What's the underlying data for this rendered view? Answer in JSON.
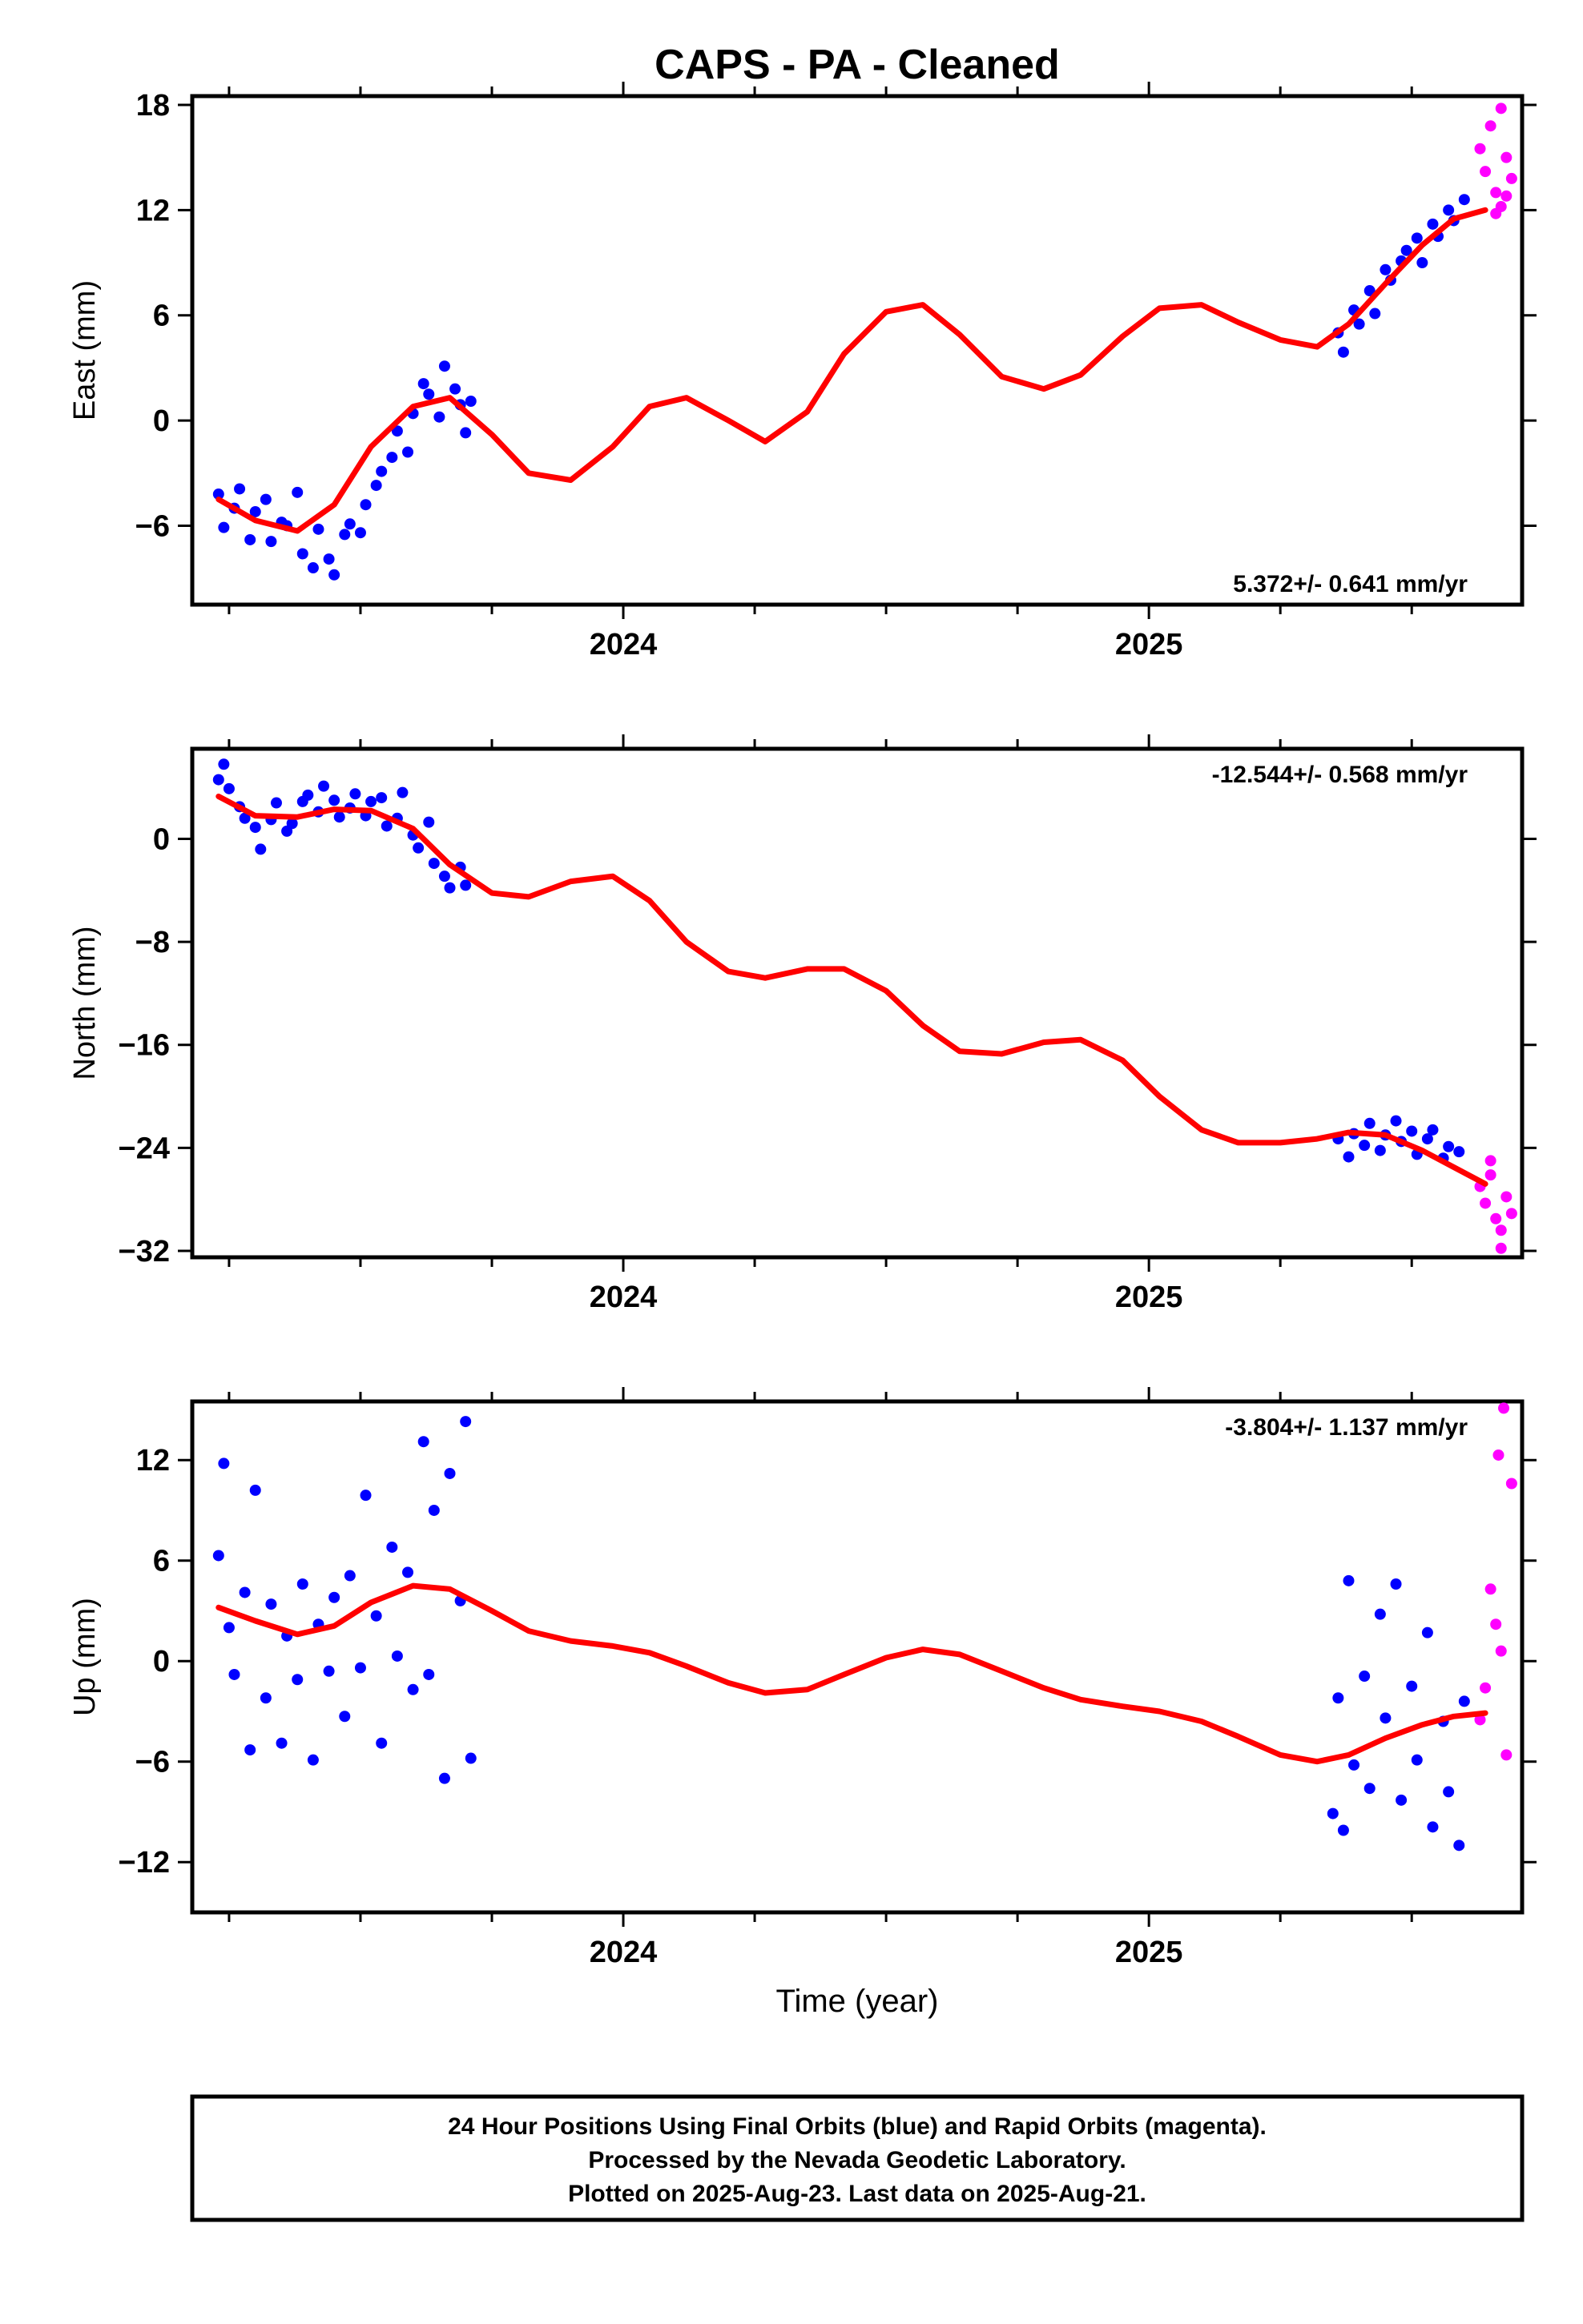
{
  "title": "CAPS  - PA - Cleaned",
  "x_axis_label": "Time (year)",
  "footer": {
    "line1": "24 Hour Positions Using Final Orbits (blue) and Rapid Orbits (magenta).",
    "line2": "Processed by the Nevada Geodetic Laboratory.",
    "line3": "Plotted on 2025-Aug-23. Last data on 2025-Aug-21."
  },
  "colors": {
    "final": "#0000ff",
    "rapid": "#ff00ff",
    "model": "#ff0000",
    "frame": "#000000"
  },
  "chart_data": [
    {
      "type": "scatter",
      "ylabel": "East (mm)",
      "rate_label": "5.372+/- 0.641 mm/yr",
      "rate_position": "bottom-right",
      "xlim": [
        2023.18,
        2025.71
      ],
      "ylim": [
        -10.5,
        18.5
      ],
      "yticks": [
        -6,
        0,
        6,
        12,
        18
      ],
      "xticks": [
        2024,
        2025
      ],
      "x_minor_step": 0.25,
      "model": {
        "x": [
          2023.23,
          2023.3,
          2023.38,
          2023.45,
          2023.52,
          2023.6,
          2023.67,
          2023.75,
          2023.82,
          2023.9,
          2023.98,
          2024.05,
          2024.12,
          2024.2,
          2024.27,
          2024.35,
          2024.42,
          2024.5,
          2024.57,
          2024.64,
          2024.72,
          2024.8,
          2024.87,
          2024.95,
          2025.02,
          2025.1,
          2025.17,
          2025.25,
          2025.32,
          2025.38,
          2025.45,
          2025.52,
          2025.58,
          2025.64
        ],
        "y": [
          -4.5,
          -5.7,
          -6.3,
          -4.8,
          -1.5,
          0.8,
          1.3,
          -0.8,
          -3.0,
          -3.4,
          -1.5,
          0.8,
          1.3,
          0.0,
          -1.2,
          0.5,
          3.8,
          6.2,
          6.6,
          4.9,
          2.5,
          1.8,
          2.6,
          4.8,
          6.4,
          6.6,
          5.6,
          4.6,
          4.2,
          5.5,
          7.8,
          10.0,
          11.5,
          12.0
        ]
      },
      "series": [
        {
          "name": "Final Orbits (blue)",
          "color": "#0000ff",
          "x": [
            2023.23,
            2023.24,
            2023.26,
            2023.27,
            2023.29,
            2023.3,
            2023.32,
            2023.33,
            2023.35,
            2023.36,
            2023.38,
            2023.39,
            2023.41,
            2023.42,
            2023.44,
            2023.45,
            2023.47,
            2023.48,
            2023.5,
            2023.51,
            2023.53,
            2023.54,
            2023.56,
            2023.57,
            2023.59,
            2023.6,
            2023.62,
            2023.63,
            2023.65,
            2023.66,
            2023.68,
            2023.69,
            2023.7,
            2023.71,
            2025.36,
            2025.37,
            2025.39,
            2025.4,
            2025.42,
            2025.43,
            2025.45,
            2025.46,
            2025.48,
            2025.49,
            2025.51,
            2025.52,
            2025.54,
            2025.55,
            2025.57,
            2025.58,
            2025.6
          ],
          "y": [
            -4.2,
            -6.1,
            -5.0,
            -3.9,
            -6.8,
            -5.2,
            -4.5,
            -6.9,
            -5.8,
            -6.0,
            -4.1,
            -7.6,
            -8.4,
            -6.2,
            -7.9,
            -8.8,
            -6.5,
            -5.9,
            -6.4,
            -4.8,
            -3.7,
            -2.9,
            -2.1,
            -0.6,
            -1.8,
            0.4,
            2.1,
            1.5,
            0.2,
            3.1,
            1.8,
            0.9,
            -0.7,
            1.1,
            5.0,
            3.9,
            6.3,
            5.5,
            7.4,
            6.1,
            8.6,
            8.0,
            9.1,
            9.7,
            10.4,
            9.0,
            11.2,
            10.5,
            12.0,
            11.4,
            12.6
          ]
        },
        {
          "name": "Rapid Orbits (magenta)",
          "color": "#ff00ff",
          "x": [
            2025.63,
            2025.64,
            2025.65,
            2025.66,
            2025.67,
            2025.68,
            2025.69,
            2025.66,
            2025.67,
            2025.68
          ],
          "y": [
            15.5,
            14.2,
            16.8,
            13.0,
            12.2,
            15.0,
            13.8,
            11.8,
            17.8,
            12.8
          ]
        }
      ]
    },
    {
      "type": "scatter",
      "ylabel": "North (mm)",
      "rate_label": "-12.544+/- 0.568 mm/yr",
      "rate_position": "top-right",
      "xlim": [
        2023.18,
        2025.71
      ],
      "ylim": [
        -32.5,
        7.0
      ],
      "yticks": [
        -32,
        -24,
        -16,
        -8,
        0
      ],
      "xticks": [
        2024,
        2025
      ],
      "x_minor_step": 0.25,
      "model": {
        "x": [
          2023.23,
          2023.3,
          2023.38,
          2023.45,
          2023.52,
          2023.6,
          2023.67,
          2023.75,
          2023.82,
          2023.9,
          2023.98,
          2024.05,
          2024.12,
          2024.2,
          2024.27,
          2024.35,
          2024.42,
          2024.5,
          2024.57,
          2024.64,
          2024.72,
          2024.8,
          2024.87,
          2024.95,
          2025.02,
          2025.1,
          2025.17,
          2025.25,
          2025.32,
          2025.38,
          2025.45,
          2025.52,
          2025.58,
          2025.64
        ],
        "y": [
          3.3,
          1.8,
          1.7,
          2.3,
          2.2,
          0.8,
          -2.0,
          -4.2,
          -4.5,
          -3.3,
          -2.9,
          -4.8,
          -8.0,
          -10.3,
          -10.8,
          -10.1,
          -10.1,
          -11.8,
          -14.5,
          -16.5,
          -16.7,
          -15.8,
          -15.6,
          -17.2,
          -20.0,
          -22.6,
          -23.6,
          -23.6,
          -23.3,
          -22.8,
          -23.0,
          -24.2,
          -25.5,
          -26.8
        ]
      },
      "series": [
        {
          "name": "Final Orbits (blue)",
          "color": "#0000ff",
          "x": [
            2023.23,
            2023.24,
            2023.25,
            2023.27,
            2023.28,
            2023.3,
            2023.31,
            2023.33,
            2023.34,
            2023.36,
            2023.37,
            2023.39,
            2023.4,
            2023.42,
            2023.43,
            2023.45,
            2023.46,
            2023.48,
            2023.49,
            2023.51,
            2023.52,
            2023.54,
            2023.55,
            2023.57,
            2023.58,
            2023.6,
            2023.61,
            2023.63,
            2023.64,
            2023.66,
            2023.67,
            2023.69,
            2023.7,
            2025.36,
            2025.38,
            2025.39,
            2025.41,
            2025.42,
            2025.44,
            2025.45,
            2025.47,
            2025.48,
            2025.5,
            2025.51,
            2025.53,
            2025.54,
            2025.56,
            2025.57,
            2025.59
          ],
          "y": [
            4.6,
            5.8,
            3.9,
            2.5,
            1.6,
            0.9,
            -0.8,
            1.5,
            2.8,
            0.6,
            1.2,
            2.9,
            3.4,
            2.1,
            4.1,
            3.0,
            1.7,
            2.4,
            3.5,
            1.8,
            2.9,
            3.2,
            1.0,
            1.6,
            3.6,
            0.3,
            -0.7,
            1.3,
            -1.9,
            -2.9,
            -3.8,
            -2.2,
            -3.6,
            -23.3,
            -24.7,
            -22.9,
            -23.8,
            -22.1,
            -24.2,
            -23.0,
            -21.9,
            -23.5,
            -22.7,
            -24.5,
            -23.3,
            -22.6,
            -24.8,
            -23.9,
            -24.3
          ]
        },
        {
          "name": "Rapid Orbits (magenta)",
          "color": "#ff00ff",
          "x": [
            2025.63,
            2025.64,
            2025.65,
            2025.66,
            2025.67,
            2025.68,
            2025.69,
            2025.65,
            2025.67
          ],
          "y": [
            -27.0,
            -28.3,
            -26.1,
            -29.5,
            -30.4,
            -27.8,
            -29.1,
            -25.0,
            -31.8
          ]
        }
      ]
    },
    {
      "type": "scatter",
      "ylabel": "Up (mm)",
      "rate_label": "-3.804+/- 1.137 mm/yr",
      "rate_position": "top-right",
      "xlim": [
        2023.18,
        2025.71
      ],
      "ylim": [
        -15.0,
        15.5
      ],
      "yticks": [
        -12,
        -6,
        0,
        6,
        12
      ],
      "xticks": [
        2024,
        2025
      ],
      "x_minor_step": 0.25,
      "model": {
        "x": [
          2023.23,
          2023.3,
          2023.38,
          2023.45,
          2023.52,
          2023.6,
          2023.67,
          2023.75,
          2023.82,
          2023.9,
          2023.98,
          2024.05,
          2024.12,
          2024.2,
          2024.27,
          2024.35,
          2024.42,
          2024.5,
          2024.57,
          2024.64,
          2024.72,
          2024.8,
          2024.87,
          2024.95,
          2025.02,
          2025.1,
          2025.17,
          2025.25,
          2025.32,
          2025.38,
          2025.45,
          2025.52,
          2025.58,
          2025.64
        ],
        "y": [
          3.2,
          2.4,
          1.6,
          2.1,
          3.5,
          4.5,
          4.3,
          3.0,
          1.8,
          1.2,
          0.9,
          0.5,
          -0.3,
          -1.3,
          -1.9,
          -1.7,
          -0.8,
          0.2,
          0.7,
          0.4,
          -0.6,
          -1.6,
          -2.3,
          -2.7,
          -3.0,
          -3.6,
          -4.5,
          -5.6,
          -6.0,
          -5.6,
          -4.6,
          -3.8,
          -3.3,
          -3.1
        ]
      },
      "series": [
        {
          "name": "Final Orbits (blue)",
          "color": "#0000ff",
          "x": [
            2023.23,
            2023.24,
            2023.25,
            2023.26,
            2023.28,
            2023.29,
            2023.3,
            2023.32,
            2023.33,
            2023.35,
            2023.36,
            2023.38,
            2023.39,
            2023.41,
            2023.42,
            2023.44,
            2023.45,
            2023.47,
            2023.48,
            2023.5,
            2023.51,
            2023.53,
            2023.54,
            2023.56,
            2023.57,
            2023.59,
            2023.6,
            2023.62,
            2023.63,
            2023.64,
            2023.66,
            2023.67,
            2023.69,
            2023.7,
            2023.71,
            2025.35,
            2025.36,
            2025.37,
            2025.38,
            2025.39,
            2025.41,
            2025.42,
            2025.44,
            2025.45,
            2025.47,
            2025.48,
            2025.5,
            2025.51,
            2025.53,
            2025.54,
            2025.56,
            2025.57,
            2025.59,
            2025.6
          ],
          "y": [
            6.3,
            11.8,
            2.0,
            -0.8,
            4.1,
            -5.3,
            10.2,
            -2.2,
            3.4,
            -4.9,
            1.5,
            -1.1,
            4.6,
            -5.9,
            2.2,
            -0.6,
            3.8,
            -3.3,
            5.1,
            -0.4,
            9.9,
            2.7,
            -4.9,
            6.8,
            0.3,
            5.3,
            -1.7,
            13.1,
            -0.8,
            9.0,
            -7.0,
            11.2,
            3.6,
            14.3,
            -5.8,
            -9.1,
            -2.2,
            -10.1,
            4.8,
            -6.2,
            -0.9,
            -7.6,
            2.8,
            -3.4,
            4.6,
            -8.3,
            -1.5,
            -5.9,
            1.7,
            -9.9,
            -3.6,
            -7.8,
            -11.0,
            -2.4
          ]
        },
        {
          "name": "Rapid Orbits (magenta)",
          "color": "#ff00ff",
          "x": [
            2025.63,
            2025.64,
            2025.65,
            2025.66,
            2025.67,
            2025.68,
            2025.69,
            2025.665,
            2025.675
          ],
          "y": [
            -3.5,
            -1.6,
            4.3,
            2.2,
            0.6,
            -5.6,
            10.6,
            12.3,
            15.1
          ]
        }
      ]
    }
  ]
}
